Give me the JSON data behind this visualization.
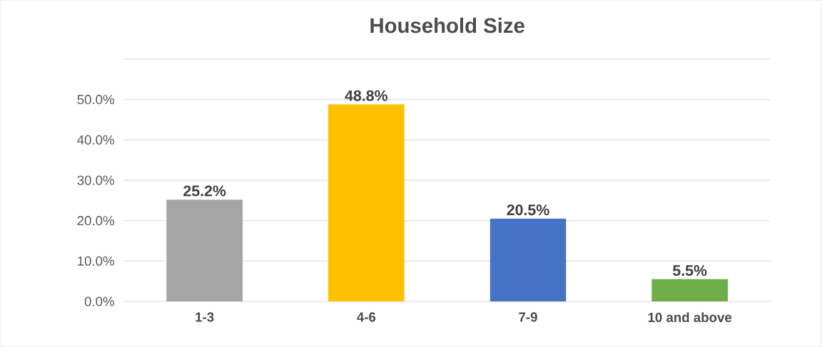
{
  "chart_data": {
    "type": "bar",
    "title": "Household Size",
    "categories": [
      "1-3",
      "4-6",
      "7-9",
      "10 and above"
    ],
    "values": [
      25.2,
      48.8,
      20.5,
      5.5
    ],
    "colors": [
      "#a5a5a5",
      "#ffc000",
      "#4472c4",
      "#70ad47"
    ],
    "value_labels": [
      "25.2%",
      "48.8%",
      "20.5%",
      "5.5%"
    ],
    "ylim": [
      0,
      60
    ],
    "yticks": [
      {
        "value": 0,
        "label": "0.0%"
      },
      {
        "value": 10,
        "label": "10.0%"
      },
      {
        "value": 20,
        "label": "20.0%"
      },
      {
        "value": 30,
        "label": "30.0%"
      },
      {
        "value": 40,
        "label": "40.0%"
      },
      {
        "value": 50,
        "label": "50.0%"
      },
      {
        "value": 60,
        "label": null
      }
    ],
    "grid": "y"
  }
}
